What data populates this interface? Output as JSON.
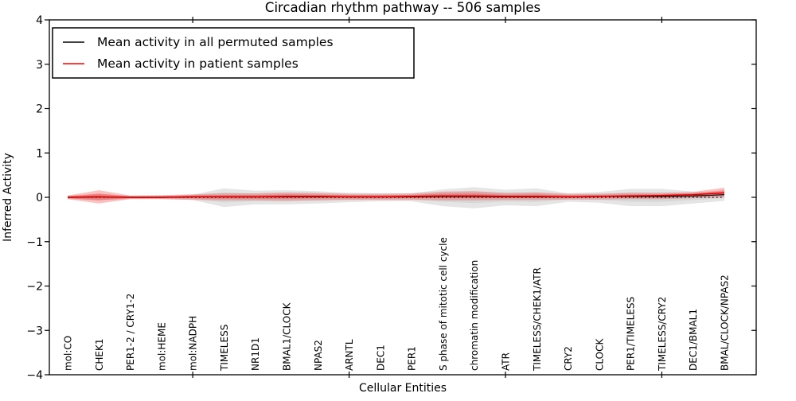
{
  "title": "Circadian rhythm pathway -- 506 samples",
  "axes": {
    "ylabel": "Inferred Activity",
    "xlabel": "Cellular Entities",
    "ytick_labels": [
      "4",
      "3",
      "2",
      "1",
      "0",
      "−1",
      "−2",
      "−3",
      "−4"
    ],
    "ytick_values": [
      4,
      3,
      2,
      1,
      0,
      -1,
      -2,
      -3,
      -4
    ]
  },
  "legend": {
    "items": [
      {
        "label": "Mean activity in all permuted samples",
        "color": "#000000"
      },
      {
        "label": "Mean activity in patient samples",
        "color": "#ff0000"
      }
    ]
  },
  "colors": {
    "permuted_line": "#000000",
    "patient_line": "#dd0000",
    "permuted_band": "#a8a8a8",
    "patient_band": "#f04040",
    "zero_line": "#000000",
    "frame": "#000000",
    "background": "#ffffff"
  },
  "chart_data": {
    "type": "line",
    "title": "Circadian rhythm pathway -- 506 samples",
    "xlabel": "Cellular Entities",
    "ylabel": "Inferred Activity",
    "ylim": [
      -4,
      4
    ],
    "grid": false,
    "legend_position": "upper left",
    "categories": [
      "mol:CO",
      "CHEK1",
      "PER1-2 / CRY1-2",
      "mol:HEME",
      "mol:NADPH",
      "TIMELESS",
      "NR1D1",
      "BMAL1/CLOCK",
      "NPAS2",
      "ARNTL",
      "DEC1",
      "PER1",
      "S phase of mitotic cell cycle",
      "chromatin modification",
      "ATR",
      "TIMELESS/CHEK1/ATR",
      "CRY2",
      "CLOCK",
      "PER1/TIMELESS",
      "TIMELESS/CRY2",
      "DEC1/BMAL1",
      "BMAL/CLOCK/NPAS2"
    ],
    "xtick_indices": [
      4,
      9,
      14,
      19
    ],
    "series": [
      {
        "name": "Mean activity in all permuted samples",
        "values": [
          0.0,
          0.01,
          0.0,
          0.0,
          0.01,
          0.01,
          0.01,
          0.01,
          0.01,
          0.01,
          0.01,
          0.01,
          0.02,
          0.02,
          0.01,
          0.01,
          0.01,
          0.02,
          0.02,
          0.02,
          0.03,
          0.06
        ]
      },
      {
        "name": "Mean activity in patient samples",
        "values": [
          0.0,
          0.01,
          0.0,
          0.0,
          0.01,
          0.01,
          0.01,
          0.02,
          0.02,
          0.01,
          0.01,
          0.02,
          0.03,
          0.03,
          0.02,
          0.02,
          0.01,
          0.02,
          0.03,
          0.04,
          0.06,
          0.1
        ]
      }
    ],
    "bands": [
      {
        "name": "permuted range",
        "upper": [
          0.04,
          0.07,
          0.04,
          0.04,
          0.06,
          0.2,
          0.15,
          0.16,
          0.14,
          0.1,
          0.09,
          0.09,
          0.18,
          0.23,
          0.17,
          0.2,
          0.09,
          0.12,
          0.19,
          0.19,
          0.13,
          0.1
        ],
        "lower": [
          -0.04,
          -0.07,
          -0.04,
          -0.04,
          -0.06,
          -0.22,
          -0.16,
          -0.16,
          -0.14,
          -0.11,
          -0.09,
          -0.09,
          -0.2,
          -0.25,
          -0.18,
          -0.2,
          -0.1,
          -0.12,
          -0.2,
          -0.2,
          -0.14,
          -0.08
        ]
      },
      {
        "name": "patient range",
        "upper": [
          0.04,
          0.16,
          0.04,
          0.05,
          0.07,
          0.09,
          0.09,
          0.11,
          0.1,
          0.08,
          0.08,
          0.09,
          0.13,
          0.14,
          0.1,
          0.11,
          0.08,
          0.08,
          0.1,
          0.1,
          0.12,
          0.22
        ],
        "lower": [
          -0.04,
          -0.14,
          -0.04,
          -0.04,
          -0.06,
          -0.07,
          -0.07,
          -0.08,
          -0.07,
          -0.06,
          -0.06,
          -0.06,
          -0.07,
          -0.07,
          -0.06,
          -0.06,
          -0.05,
          -0.05,
          -0.04,
          -0.04,
          -0.02,
          0.0
        ]
      }
    ],
    "zero_line": {
      "y": 0,
      "style": "dotted"
    }
  }
}
